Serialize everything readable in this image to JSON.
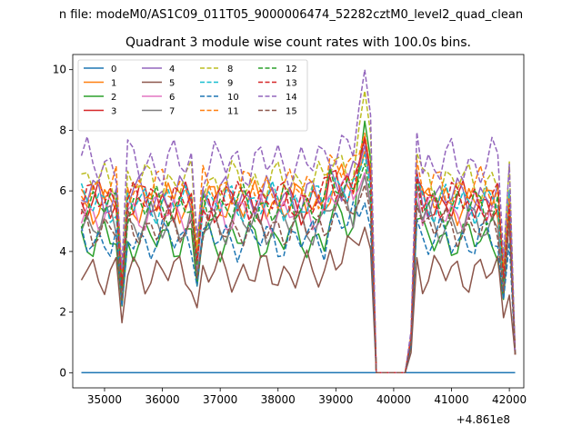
{
  "chart_data": {
    "type": "line",
    "suptitle": "n file: modeM0/AS1C09_011T05_9000006474_52282cztM0_level2_quad_clean",
    "title": "Quadrant 3 module wise count rates with 100.0s bins.",
    "xlabel": "",
    "ylabel": "",
    "xlim": [
      34450,
      42250
    ],
    "ylim": [
      -0.5,
      10.5
    ],
    "x_ticks": [
      35000,
      36000,
      37000,
      38000,
      39000,
      40000,
      41000,
      42000
    ],
    "x_tick_labels": [
      "35000",
      "36000",
      "37000",
      "38000",
      "39000",
      "40000",
      "41000",
      "42000"
    ],
    "y_ticks": [
      0,
      2,
      4,
      6,
      8,
      10
    ],
    "y_tick_labels": [
      "0",
      "2",
      "4",
      "6",
      "8",
      "10"
    ],
    "offset_text": "+4.861e8",
    "legend_location": "upper-left",
    "x_range": {
      "start": 34600,
      "step": 100,
      "count": 76
    },
    "gap": {
      "from": 39700,
      "to": 40200
    },
    "series": [
      {
        "name": "0",
        "color": "#1f77b4",
        "dash": "solid",
        "level": 0.0,
        "amp": 0.0,
        "peak": 0.0
      },
      {
        "name": "1",
        "color": "#ff7f0e",
        "dash": "solid",
        "level": 5.6,
        "amp": 0.5,
        "peak": 7.3
      },
      {
        "name": "2",
        "color": "#2ca02c",
        "dash": "solid",
        "level": 4.4,
        "amp": 0.5,
        "peak": 8.3
      },
      {
        "name": "3",
        "color": "#d62728",
        "dash": "solid",
        "level": 5.6,
        "amp": 0.5,
        "peak": 7.8
      },
      {
        "name": "4",
        "color": "#9467bd",
        "dash": "solid",
        "level": 5.8,
        "amp": 0.5,
        "peak": 7.5
      },
      {
        "name": "5",
        "color": "#8c564b",
        "dash": "solid",
        "level": 3.3,
        "amp": 0.5,
        "peak": 4.8
      },
      {
        "name": "6",
        "color": "#e377c2",
        "dash": "solid",
        "level": 5.3,
        "amp": 0.5,
        "peak": 6.6
      },
      {
        "name": "7",
        "color": "#7f7f7f",
        "dash": "solid",
        "level": 4.9,
        "amp": 0.5,
        "peak": 6.5
      },
      {
        "name": "8",
        "color": "#bcbd22",
        "dash": "dashed",
        "level": 6.3,
        "amp": 0.5,
        "peak": 9.3
      },
      {
        "name": "9",
        "color": "#17becf",
        "dash": "dashed",
        "level": 5.6,
        "amp": 0.5,
        "peak": 7.2
      },
      {
        "name": "10",
        "color": "#1f77b4",
        "dash": "dashed",
        "level": 4.4,
        "amp": 0.5,
        "peak": 5.6
      },
      {
        "name": "11",
        "color": "#ff7f0e",
        "dash": "dashed",
        "level": 6.1,
        "amp": 0.5,
        "peak": 7.9
      },
      {
        "name": "12",
        "color": "#2ca02c",
        "dash": "dashed",
        "level": 5.5,
        "amp": 0.5,
        "peak": 6.9
      },
      {
        "name": "13",
        "color": "#d62728",
        "dash": "dashed",
        "level": 5.7,
        "amp": 0.5,
        "peak": 7.7
      },
      {
        "name": "14",
        "color": "#9467bd",
        "dash": "dashed",
        "level": 6.9,
        "amp": 0.6,
        "peak": 10.0
      },
      {
        "name": "15",
        "color": "#8c564b",
        "dash": "dashed",
        "level": 4.8,
        "amp": 0.5,
        "peak": 6.2
      }
    ]
  }
}
